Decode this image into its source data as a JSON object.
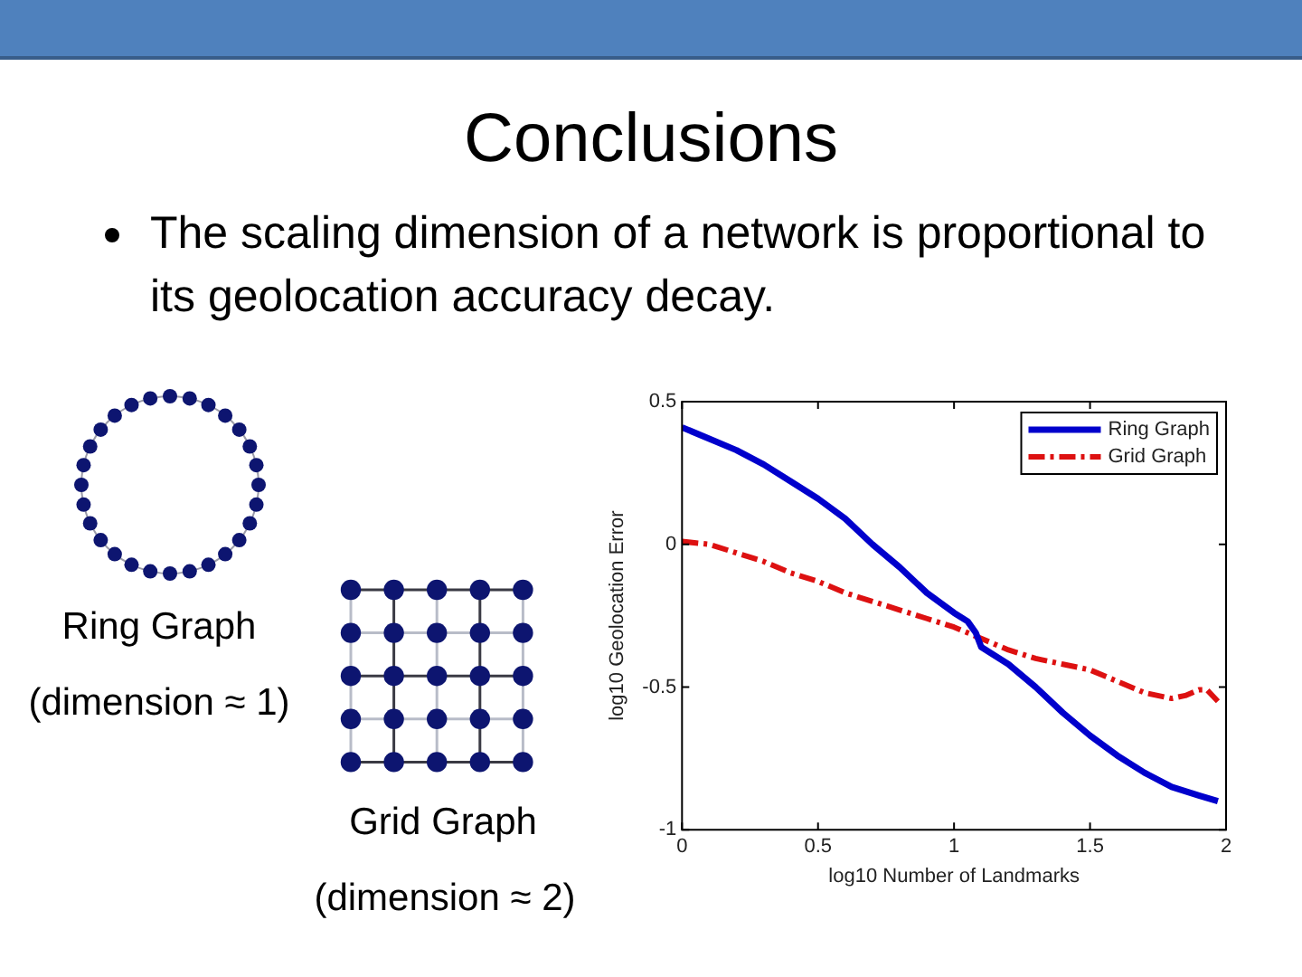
{
  "chart_data": {
    "type": "line",
    "title": "Conclusions",
    "subtitle": "The scaling dimension of a network is proportional to its geolocation accuracy decay.",
    "xlabel": "log10 Number of Landmarks",
    "ylabel": "log10 Geolocation Error",
    "annotations": [
      "Ring Graph",
      "(dimension ≈ 1)",
      "Grid Graph",
      "(dimension ≈ 2)"
    ],
    "series": [
      {
        "name": "Ring Graph",
        "color": "#0000cc",
        "line_style": "solid",
        "x": [
          0,
          0.1,
          0.2,
          0.3,
          0.4,
          0.5,
          0.6,
          0.7,
          0.8,
          0.9,
          1.0,
          1.05,
          1.08,
          1.1,
          1.2,
          1.3,
          1.4,
          1.5,
          1.6,
          1.7,
          1.8,
          1.9,
          1.97
        ],
        "values": [
          0.41,
          0.37,
          0.33,
          0.28,
          0.22,
          0.16,
          0.09,
          0.0,
          -0.08,
          -0.17,
          -0.24,
          -0.27,
          -0.31,
          -0.36,
          -0.42,
          -0.5,
          -0.59,
          -0.67,
          -0.74,
          -0.8,
          -0.85,
          -0.88,
          -0.9
        ]
      },
      {
        "name": "Grid Graph",
        "color": "#dd1111",
        "line_style": "dashed",
        "x": [
          0,
          0.1,
          0.2,
          0.3,
          0.4,
          0.5,
          0.6,
          0.7,
          0.8,
          0.9,
          1.0,
          1.1,
          1.2,
          1.3,
          1.4,
          1.5,
          1.6,
          1.7,
          1.8,
          1.85,
          1.9,
          1.93,
          1.97
        ],
        "values": [
          0.01,
          0.0,
          -0.03,
          -0.06,
          -0.1,
          -0.13,
          -0.17,
          -0.2,
          -0.23,
          -0.26,
          -0.29,
          -0.33,
          -0.37,
          -0.4,
          -0.42,
          -0.44,
          -0.48,
          -0.52,
          -0.54,
          -0.53,
          -0.51,
          -0.51,
          -0.55
        ]
      }
    ],
    "xlim": [
      0,
      2
    ],
    "xticks": [
      0,
      0.5,
      1,
      1.5,
      2
    ],
    "ylim": [
      -1,
      0.5
    ],
    "yticks": [
      -1,
      -0.5,
      0,
      0.5
    ],
    "legend": "top right",
    "marker": "none",
    "grid": false
  }
}
